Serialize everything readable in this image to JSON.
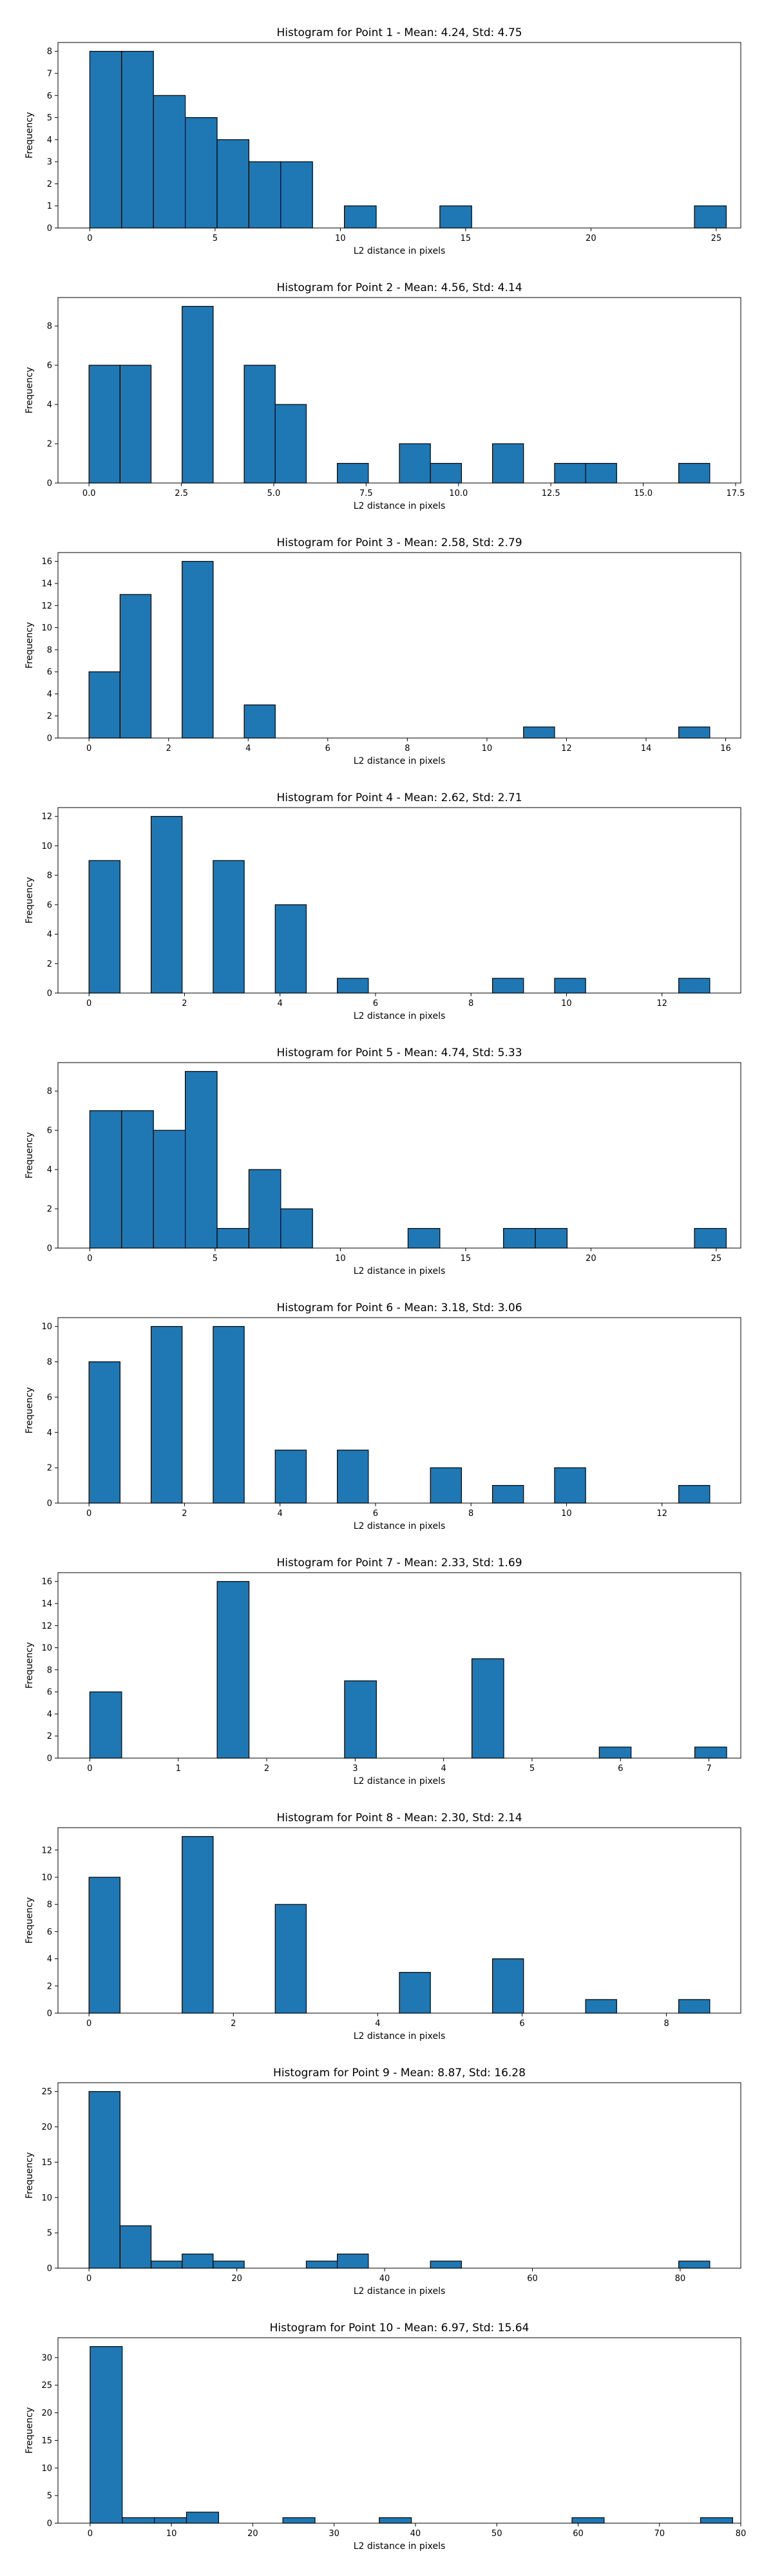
{
  "figure": {
    "background": "#ffffff",
    "bar_color": "#1f77b4",
    "edge_color": "#000000"
  },
  "chart_data": [
    {
      "type": "bar",
      "title": "Histogram for Point 1 - Mean: 4.24, Std: 4.75",
      "xlabel": "L2 distance in pixels",
      "ylabel": "Frequency",
      "xlim": [
        -1.27,
        25.98
      ],
      "ylim": [
        0,
        8.4
      ],
      "xticks": [
        0,
        5,
        10,
        15,
        20,
        25
      ],
      "xtick_labels": [
        "0",
        "5",
        "10",
        "15",
        "20",
        "25"
      ],
      "yticks": [
        0,
        1,
        2,
        3,
        4,
        5,
        6,
        7,
        8
      ],
      "ytick_labels": [
        "0",
        "1",
        "2",
        "3",
        "4",
        "5",
        "6",
        "7",
        "8"
      ],
      "bars": [
        {
          "x0": 0.0,
          "x1": 1.27,
          "value": 8
        },
        {
          "x0": 1.27,
          "x1": 2.54,
          "value": 8
        },
        {
          "x0": 2.54,
          "x1": 3.81,
          "value": 6
        },
        {
          "x0": 3.81,
          "x1": 5.08,
          "value": 5
        },
        {
          "x0": 5.08,
          "x1": 6.35,
          "value": 4
        },
        {
          "x0": 6.35,
          "x1": 7.62,
          "value": 3
        },
        {
          "x0": 7.62,
          "x1": 8.89,
          "value": 3
        },
        {
          "x0": 10.16,
          "x1": 11.43,
          "value": 1
        },
        {
          "x0": 13.97,
          "x1": 15.24,
          "value": 1
        },
        {
          "x0": 24.13,
          "x1": 25.4,
          "value": 1
        }
      ]
    },
    {
      "type": "bar",
      "title": "Histogram for Point 2 - Mean: 4.56, Std: 4.14",
      "xlabel": "L2 distance in pixels",
      "ylabel": "Frequency",
      "xlim": [
        -0.84,
        17.64
      ],
      "ylim": [
        0,
        9.45
      ],
      "xticks": [
        0,
        2.5,
        5,
        7.5,
        10,
        12.5,
        15,
        17.5
      ],
      "xtick_labels": [
        "0.0",
        "2.5",
        "5.0",
        "7.5",
        "10.0",
        "12.5",
        "15.0",
        "17.5"
      ],
      "yticks": [
        0,
        2,
        4,
        6,
        8
      ],
      "ytick_labels": [
        "0",
        "2",
        "4",
        "6",
        "8"
      ],
      "bars": [
        {
          "x0": 0.0,
          "x1": 0.84,
          "value": 6
        },
        {
          "x0": 0.84,
          "x1": 1.68,
          "value": 6
        },
        {
          "x0": 2.52,
          "x1": 3.36,
          "value": 9
        },
        {
          "x0": 4.2,
          "x1": 5.04,
          "value": 6
        },
        {
          "x0": 5.04,
          "x1": 5.88,
          "value": 4
        },
        {
          "x0": 6.72,
          "x1": 7.56,
          "value": 1
        },
        {
          "x0": 8.4,
          "x1": 9.24,
          "value": 2
        },
        {
          "x0": 9.24,
          "x1": 10.08,
          "value": 1
        },
        {
          "x0": 10.92,
          "x1": 11.76,
          "value": 2
        },
        {
          "x0": 12.6,
          "x1": 13.44,
          "value": 1
        },
        {
          "x0": 13.44,
          "x1": 14.28,
          "value": 1
        },
        {
          "x0": 15.96,
          "x1": 16.8,
          "value": 1
        }
      ]
    },
    {
      "type": "bar",
      "title": "Histogram for Point 3 - Mean: 2.58, Std: 2.79",
      "xlabel": "L2 distance in pixels",
      "ylabel": "Frequency",
      "xlim": [
        -0.78,
        16.38
      ],
      "ylim": [
        0,
        16.8
      ],
      "xticks": [
        0,
        2,
        4,
        6,
        8,
        10,
        12,
        14,
        16
      ],
      "xtick_labels": [
        "0",
        "2",
        "4",
        "6",
        "8",
        "10",
        "12",
        "14",
        "16"
      ],
      "yticks": [
        0,
        2,
        4,
        6,
        8,
        10,
        12,
        14,
        16
      ],
      "ytick_labels": [
        "0",
        "2",
        "4",
        "6",
        "8",
        "10",
        "12",
        "14",
        "16"
      ],
      "bars": [
        {
          "x0": 0.0,
          "x1": 0.78,
          "value": 6
        },
        {
          "x0": 0.78,
          "x1": 1.56,
          "value": 13
        },
        {
          "x0": 2.34,
          "x1": 3.12,
          "value": 16
        },
        {
          "x0": 3.9,
          "x1": 4.68,
          "value": 3
        },
        {
          "x0": 10.92,
          "x1": 11.7,
          "value": 1
        },
        {
          "x0": 14.82,
          "x1": 15.6,
          "value": 1
        }
      ]
    },
    {
      "type": "bar",
      "title": "Histogram for Point 4 - Mean: 2.62, Std: 2.71",
      "xlabel": "L2 distance in pixels",
      "ylabel": "Frequency",
      "xlim": [
        -0.65,
        13.65
      ],
      "ylim": [
        0,
        12.6
      ],
      "xticks": [
        0,
        2,
        4,
        6,
        8,
        10,
        12
      ],
      "xtick_labels": [
        "0",
        "2",
        "4",
        "6",
        "8",
        "10",
        "12"
      ],
      "yticks": [
        0,
        2,
        4,
        6,
        8,
        10,
        12
      ],
      "ytick_labels": [
        "0",
        "2",
        "4",
        "6",
        "8",
        "10",
        "12"
      ],
      "bars": [
        {
          "x0": 0.0,
          "x1": 0.65,
          "value": 9
        },
        {
          "x0": 1.3,
          "x1": 1.95,
          "value": 12
        },
        {
          "x0": 2.6,
          "x1": 3.25,
          "value": 9
        },
        {
          "x0": 3.9,
          "x1": 4.55,
          "value": 6
        },
        {
          "x0": 5.2,
          "x1": 5.85,
          "value": 1
        },
        {
          "x0": 8.45,
          "x1": 9.1,
          "value": 1
        },
        {
          "x0": 9.75,
          "x1": 10.4,
          "value": 1
        },
        {
          "x0": 12.35,
          "x1": 13.0,
          "value": 1
        }
      ]
    },
    {
      "type": "bar",
      "title": "Histogram for Point 5 - Mean: 4.74, Std: 5.33",
      "xlabel": "L2 distance in pixels",
      "ylabel": "Frequency",
      "xlim": [
        -1.27,
        25.98
      ],
      "ylim": [
        0,
        9.45
      ],
      "xticks": [
        0,
        5,
        10,
        15,
        20,
        25
      ],
      "xtick_labels": [
        "0",
        "5",
        "10",
        "15",
        "20",
        "25"
      ],
      "yticks": [
        0,
        2,
        4,
        6,
        8
      ],
      "ytick_labels": [
        "0",
        "2",
        "4",
        "6",
        "8"
      ],
      "bars": [
        {
          "x0": 0.0,
          "x1": 1.27,
          "value": 7
        },
        {
          "x0": 1.27,
          "x1": 2.54,
          "value": 7
        },
        {
          "x0": 2.54,
          "x1": 3.81,
          "value": 6
        },
        {
          "x0": 3.81,
          "x1": 5.08,
          "value": 9
        },
        {
          "x0": 5.08,
          "x1": 6.35,
          "value": 1
        },
        {
          "x0": 6.35,
          "x1": 7.62,
          "value": 4
        },
        {
          "x0": 7.62,
          "x1": 8.89,
          "value": 2
        },
        {
          "x0": 12.7,
          "x1": 13.97,
          "value": 1
        },
        {
          "x0": 16.51,
          "x1": 17.78,
          "value": 1
        },
        {
          "x0": 17.78,
          "x1": 19.05,
          "value": 1
        },
        {
          "x0": 24.13,
          "x1": 25.4,
          "value": 1
        }
      ]
    },
    {
      "type": "bar",
      "title": "Histogram for Point 6 - Mean: 3.18, Std: 3.06",
      "xlabel": "L2 distance in pixels",
      "ylabel": "Frequency",
      "xlim": [
        -0.65,
        13.65
      ],
      "ylim": [
        0,
        10.5
      ],
      "xticks": [
        0,
        2,
        4,
        6,
        8,
        10,
        12
      ],
      "xtick_labels": [
        "0",
        "2",
        "4",
        "6",
        "8",
        "10",
        "12"
      ],
      "yticks": [
        0,
        2,
        4,
        6,
        8,
        10
      ],
      "ytick_labels": [
        "0",
        "2",
        "4",
        "6",
        "8",
        "10"
      ],
      "bars": [
        {
          "x0": 0.0,
          "x1": 0.65,
          "value": 8
        },
        {
          "x0": 1.3,
          "x1": 1.95,
          "value": 10
        },
        {
          "x0": 2.6,
          "x1": 3.25,
          "value": 10
        },
        {
          "x0": 3.9,
          "x1": 4.55,
          "value": 3
        },
        {
          "x0": 5.2,
          "x1": 5.85,
          "value": 3
        },
        {
          "x0": 7.15,
          "x1": 7.8,
          "value": 2
        },
        {
          "x0": 8.45,
          "x1": 9.1,
          "value": 1
        },
        {
          "x0": 9.75,
          "x1": 10.4,
          "value": 2
        },
        {
          "x0": 12.35,
          "x1": 13.0,
          "value": 1
        }
      ]
    },
    {
      "type": "bar",
      "title": "Histogram for Point 7 - Mean: 2.33, Std: 1.69",
      "xlabel": "L2 distance in pixels",
      "ylabel": "Frequency",
      "xlim": [
        -0.36,
        7.36
      ],
      "ylim": [
        0,
        16.8
      ],
      "xticks": [
        0,
        1,
        2,
        3,
        4,
        5,
        6,
        7
      ],
      "xtick_labels": [
        "0",
        "1",
        "2",
        "3",
        "4",
        "5",
        "6",
        "7"
      ],
      "yticks": [
        0,
        2,
        4,
        6,
        8,
        10,
        12,
        14,
        16
      ],
      "ytick_labels": [
        "0",
        "2",
        "4",
        "6",
        "8",
        "10",
        "12",
        "14",
        "16"
      ],
      "bars": [
        {
          "x0": 0.0,
          "x1": 0.36,
          "value": 6
        },
        {
          "x0": 1.44,
          "x1": 1.8,
          "value": 16
        },
        {
          "x0": 2.88,
          "x1": 3.24,
          "value": 7
        },
        {
          "x0": 4.32,
          "x1": 4.68,
          "value": 9
        },
        {
          "x0": 5.76,
          "x1": 6.12,
          "value": 1
        },
        {
          "x0": 6.84,
          "x1": 7.2,
          "value": 1
        }
      ]
    },
    {
      "type": "bar",
      "title": "Histogram for Point 8 - Mean: 2.30, Std: 2.14",
      "xlabel": "L2 distance in pixels",
      "ylabel": "Frequency",
      "xlim": [
        -0.43,
        9.03
      ],
      "ylim": [
        0,
        13.65
      ],
      "xticks": [
        0,
        2,
        4,
        6,
        8
      ],
      "xtick_labels": [
        "0",
        "2",
        "4",
        "6",
        "8"
      ],
      "yticks": [
        0,
        2,
        4,
        6,
        8,
        10,
        12
      ],
      "ytick_labels": [
        "0",
        "2",
        "4",
        "6",
        "8",
        "10",
        "12"
      ],
      "bars": [
        {
          "x0": 0.0,
          "x1": 0.43,
          "value": 10
        },
        {
          "x0": 1.29,
          "x1": 1.72,
          "value": 13
        },
        {
          "x0": 2.58,
          "x1": 3.01,
          "value": 8
        },
        {
          "x0": 4.3,
          "x1": 4.73,
          "value": 3
        },
        {
          "x0": 5.59,
          "x1": 6.02,
          "value": 4
        },
        {
          "x0": 6.88,
          "x1": 7.31,
          "value": 1
        },
        {
          "x0": 8.17,
          "x1": 8.6,
          "value": 1
        }
      ]
    },
    {
      "type": "bar",
      "title": "Histogram for Point 9 - Mean: 8.87, Std: 16.28",
      "xlabel": "L2 distance in pixels",
      "ylabel": "Frequency",
      "xlim": [
        -4.2,
        88.2
      ],
      "ylim": [
        0,
        26.25
      ],
      "xticks": [
        0,
        20,
        40,
        60,
        80
      ],
      "xtick_labels": [
        "0",
        "20",
        "40",
        "60",
        "80"
      ],
      "yticks": [
        0,
        5,
        10,
        15,
        20,
        25
      ],
      "ytick_labels": [
        "0",
        "5",
        "10",
        "15",
        "20",
        "25"
      ],
      "bars": [
        {
          "x0": 0.0,
          "x1": 4.2,
          "value": 25
        },
        {
          "x0": 4.2,
          "x1": 8.4,
          "value": 6
        },
        {
          "x0": 8.4,
          "x1": 12.6,
          "value": 1
        },
        {
          "x0": 12.6,
          "x1": 16.8,
          "value": 2
        },
        {
          "x0": 16.8,
          "x1": 21.0,
          "value": 1
        },
        {
          "x0": 29.4,
          "x1": 33.6,
          "value": 1
        },
        {
          "x0": 33.6,
          "x1": 37.8,
          "value": 2
        },
        {
          "x0": 46.2,
          "x1": 50.4,
          "value": 1
        },
        {
          "x0": 79.8,
          "x1": 84.0,
          "value": 1
        }
      ]
    },
    {
      "type": "bar",
      "title": "Histogram for Point 10 - Mean: 6.97, Std: 15.64",
      "xlabel": "L2 distance in pixels",
      "ylabel": "Frequency",
      "xlim": [
        -3.95,
        80.0
      ],
      "ylim": [
        0,
        33.6
      ],
      "xticks": [
        0,
        10,
        20,
        30,
        40,
        50,
        60,
        70,
        80
      ],
      "xtick_labels": [
        "0",
        "10",
        "20",
        "30",
        "40",
        "50",
        "60",
        "70",
        "80"
      ],
      "yticks": [
        0,
        5,
        10,
        15,
        20,
        25,
        30
      ],
      "ytick_labels": [
        "0",
        "5",
        "10",
        "15",
        "20",
        "25",
        "30"
      ],
      "bars": [
        {
          "x0": 0.0,
          "x1": 3.95,
          "value": 32
        },
        {
          "x0": 3.95,
          "x1": 7.9,
          "value": 1
        },
        {
          "x0": 7.9,
          "x1": 11.85,
          "value": 1
        },
        {
          "x0": 11.85,
          "x1": 15.8,
          "value": 2
        },
        {
          "x0": 23.7,
          "x1": 27.65,
          "value": 1
        },
        {
          "x0": 35.55,
          "x1": 39.5,
          "value": 1
        },
        {
          "x0": 59.25,
          "x1": 63.2,
          "value": 1
        },
        {
          "x0": 75.05,
          "x1": 79.0,
          "value": 1
        }
      ]
    }
  ]
}
